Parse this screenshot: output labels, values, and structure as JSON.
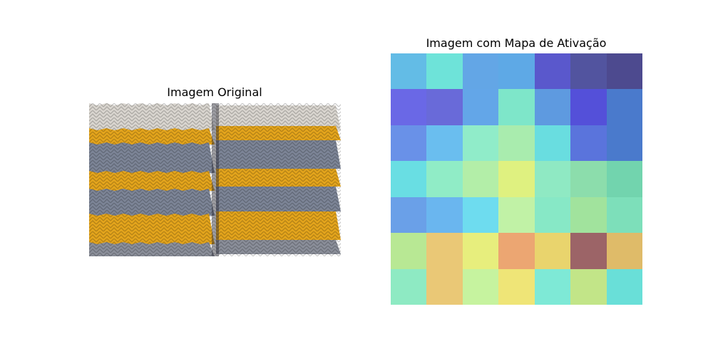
{
  "figure": {
    "left_title": "Imagem Original",
    "right_title": "Imagem com Mapa de Ativação"
  },
  "original_image": {
    "stripe_colors": [
      "#d9d5cf",
      "#e3a41c",
      "#7c8496",
      "#e3a41c",
      "#7c8496",
      "#e3a41c",
      "#8a8e99"
    ]
  },
  "heatmap": {
    "rows": 7,
    "cols": 7,
    "cells": [
      [
        "#63bce6",
        "#6ee3d9",
        "#63a6e6",
        "#5ea9e6",
        "#5a58cc",
        "#52549f",
        "#4d4a8f"
      ],
      [
        "#6a68e6",
        "#696ad9",
        "#63a6e8",
        "#7ee6c9",
        "#5e9ae0",
        "#5450d9",
        "#4a7acc"
      ],
      [
        "#6991e8",
        "#6abeef",
        "#90ecc9",
        "#a9ecae",
        "#69dde0",
        "#5a74dc",
        "#4a7acc"
      ],
      [
        "#69dee3",
        "#90ecc6",
        "#b3eea8",
        "#dff180",
        "#8fe9c3",
        "#8cddac",
        "#72d4ae"
      ],
      [
        "#6aa0e8",
        "#6ab6ef",
        "#6edcef",
        "#c1f2a6",
        "#87e8c6",
        "#a1e39d",
        "#7ddfba"
      ],
      [
        "#b8e894",
        "#eac876",
        "#e7ee7d",
        "#eca672",
        "#e9d46d",
        "#9c6467",
        "#dfbb69"
      ],
      [
        "#8eeac3",
        "#eac876",
        "#c6f39f",
        "#efe577",
        "#7ee9d6",
        "#c2e588",
        "#69dfd8"
      ]
    ]
  }
}
